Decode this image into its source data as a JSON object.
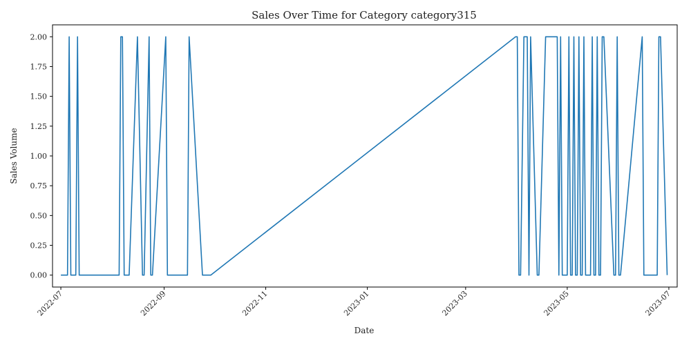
{
  "chart_data": {
    "type": "line",
    "title": "Sales Over Time for Category category315",
    "xlabel": "Date",
    "ylabel": "Sales Volume",
    "xlim": [
      "2022-06-26",
      "2023-07-06"
    ],
    "ylim": [
      -0.1,
      2.1
    ],
    "x_ticks": [
      "2022-07",
      "2022-09",
      "2022-11",
      "2023-01",
      "2023-03",
      "2023-05",
      "2023-07"
    ],
    "x_tick_dates": [
      "2022-07-01",
      "2022-09-01",
      "2022-11-01",
      "2023-01-01",
      "2023-03-01",
      "2023-05-01",
      "2023-07-01"
    ],
    "y_ticks": [
      "0.00",
      "0.25",
      "0.50",
      "0.75",
      "1.00",
      "1.25",
      "1.50",
      "1.75",
      "2.00"
    ],
    "y_tick_values": [
      0,
      0.25,
      0.5,
      0.75,
      1.0,
      1.25,
      1.5,
      1.75,
      2.0
    ],
    "grid": false,
    "series": [
      {
        "color": "#1f77b4",
        "x": [
          "2022-07-01",
          "2022-07-05",
          "2022-07-06",
          "2022-07-07",
          "2022-07-10",
          "2022-07-11",
          "2022-07-12",
          "2022-08-05",
          "2022-08-06",
          "2022-08-07",
          "2022-08-08",
          "2022-08-11",
          "2022-08-16",
          "2022-08-19",
          "2022-08-20",
          "2022-08-23",
          "2022-08-24",
          "2022-08-25",
          "2022-09-02",
          "2022-09-03",
          "2022-09-15",
          "2022-09-16",
          "2022-09-24",
          "2022-09-25",
          "2022-09-29",
          "2023-03-31",
          "2023-04-01",
          "2023-04-02",
          "2023-04-03",
          "2023-04-05",
          "2023-04-06",
          "2023-04-07",
          "2023-04-08",
          "2023-04-09",
          "2023-04-13",
          "2023-04-14",
          "2023-04-18",
          "2023-04-19",
          "2023-04-20",
          "2023-04-24",
          "2023-04-25",
          "2023-04-26",
          "2023-04-27",
          "2023-04-28",
          "2023-04-29",
          "2023-04-30",
          "2023-05-01",
          "2023-05-02",
          "2023-05-03",
          "2023-05-04",
          "2023-05-05",
          "2023-05-06",
          "2023-05-07",
          "2023-05-08",
          "2023-05-09",
          "2023-05-10",
          "2023-05-11",
          "2023-05-12",
          "2023-05-13",
          "2023-05-14",
          "2023-05-15",
          "2023-05-16",
          "2023-05-17",
          "2023-05-18",
          "2023-05-19",
          "2023-05-20",
          "2023-05-21",
          "2023-05-22",
          "2023-05-23",
          "2023-05-29",
          "2023-05-30",
          "2023-05-31",
          "2023-06-01",
          "2023-06-02",
          "2023-06-15",
          "2023-06-16",
          "2023-06-17",
          "2023-06-24",
          "2023-06-25",
          "2023-06-26",
          "2023-06-30"
        ],
        "y": [
          0,
          0,
          2,
          0,
          0,
          2,
          0,
          0,
          2,
          2,
          0,
          0,
          2,
          0,
          0,
          2,
          0,
          0,
          2,
          0,
          0,
          2,
          0,
          0,
          0,
          2,
          2,
          0,
          0,
          2,
          2,
          2,
          0,
          2,
          0,
          0,
          2,
          2,
          2,
          2,
          2,
          0,
          2,
          0,
          0,
          0,
          0,
          2,
          0,
          0,
          2,
          0,
          0,
          2,
          0,
          0,
          2,
          0,
          0,
          0,
          0,
          2,
          0,
          0,
          2,
          0,
          0,
          2,
          2,
          0,
          0,
          2,
          0,
          0,
          2,
          0,
          0,
          0,
          2,
          2,
          0
        ]
      }
    ]
  }
}
